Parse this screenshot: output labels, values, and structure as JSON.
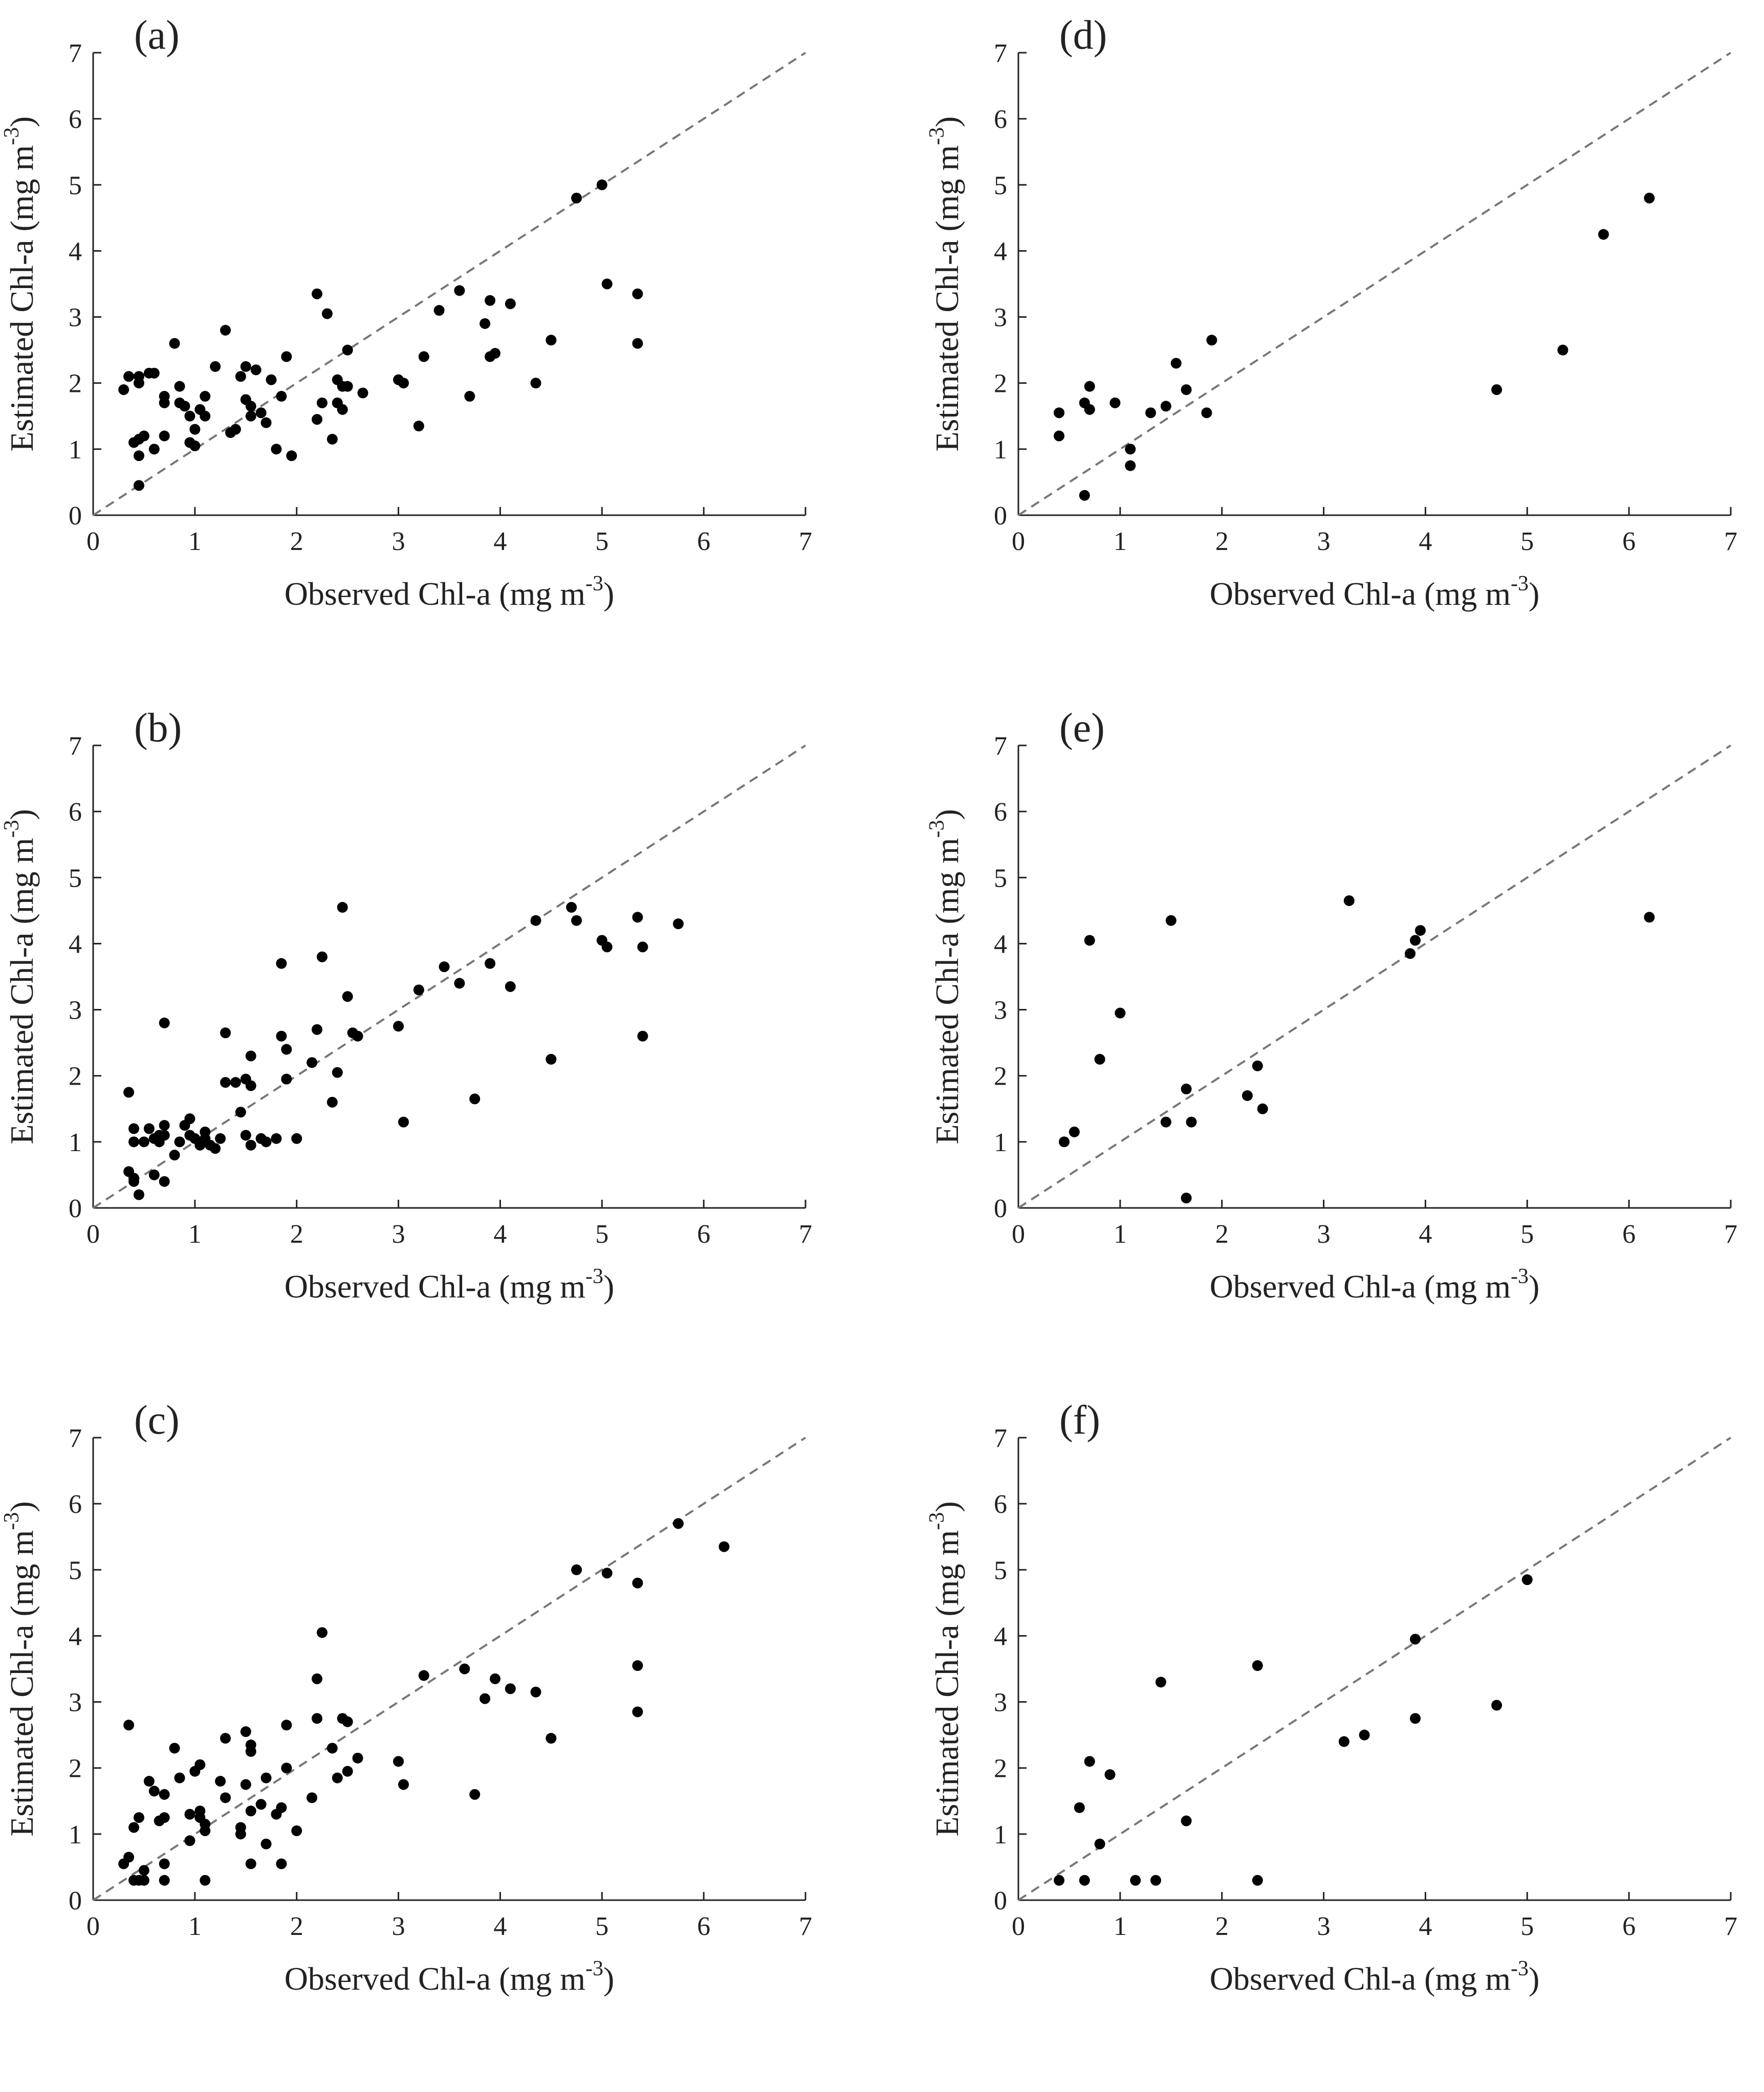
{
  "figure": {
    "x_axis_title": "Observed Chl-a (mg m",
    "y_axis_title": "Estimated Chl-a (mg m",
    "unit_exponent": "-3",
    "close_paren": ")",
    "ticks": [
      "0",
      "1",
      "2",
      "3",
      "4",
      "5",
      "6",
      "7"
    ]
  },
  "colors": {
    "point": "#000000",
    "reference_line": "#777777",
    "axis": "#222222"
  },
  "chart_data": [
    {
      "type": "scatter",
      "panel": "(a)",
      "xlabel": "Observed Chl-a (mg m-3)",
      "ylabel": "Estimated Chl-a (mg m-3)",
      "xlim": [
        0,
        7
      ],
      "ylim": [
        0,
        7
      ],
      "reference_line": "1:1 dashed",
      "points": [
        [
          0.3,
          1.9
        ],
        [
          0.35,
          2.1
        ],
        [
          0.45,
          2.1
        ],
        [
          0.4,
          1.1
        ],
        [
          0.45,
          1.15
        ],
        [
          0.5,
          1.2
        ],
        [
          0.45,
          2.0
        ],
        [
          0.55,
          2.15
        ],
        [
          0.6,
          2.15
        ],
        [
          0.45,
          0.45
        ],
        [
          0.45,
          0.9
        ],
        [
          0.6,
          1.0
        ],
        [
          0.7,
          1.8
        ],
        [
          0.7,
          1.7
        ],
        [
          0.7,
          1.2
        ],
        [
          0.8,
          2.6
        ],
        [
          0.85,
          1.95
        ],
        [
          0.85,
          1.7
        ],
        [
          0.9,
          1.65
        ],
        [
          0.95,
          1.5
        ],
        [
          0.95,
          1.1
        ],
        [
          1.0,
          1.05
        ],
        [
          1.0,
          1.3
        ],
        [
          1.05,
          1.6
        ],
        [
          1.1,
          1.5
        ],
        [
          1.1,
          1.8
        ],
        [
          1.2,
          2.25
        ],
        [
          1.3,
          2.8
        ],
        [
          1.35,
          1.25
        ],
        [
          1.4,
          1.3
        ],
        [
          1.45,
          2.1
        ],
        [
          1.5,
          2.25
        ],
        [
          1.5,
          1.75
        ],
        [
          1.55,
          1.65
        ],
        [
          1.55,
          1.5
        ],
        [
          1.6,
          2.2
        ],
        [
          1.65,
          1.55
        ],
        [
          1.7,
          1.4
        ],
        [
          1.75,
          2.05
        ],
        [
          1.8,
          1.0
        ],
        [
          1.85,
          1.8
        ],
        [
          1.9,
          2.4
        ],
        [
          1.95,
          0.9
        ],
        [
          2.2,
          1.45
        ],
        [
          2.25,
          1.7
        ],
        [
          2.2,
          3.35
        ],
        [
          2.3,
          3.05
        ],
        [
          2.35,
          1.15
        ],
        [
          2.4,
          2.05
        ],
        [
          2.4,
          1.7
        ],
        [
          2.45,
          1.6
        ],
        [
          2.45,
          1.95
        ],
        [
          2.5,
          2.5
        ],
        [
          2.5,
          1.95
        ],
        [
          2.65,
          1.85
        ],
        [
          3.0,
          2.05
        ],
        [
          3.05,
          2.0
        ],
        [
          3.2,
          1.35
        ],
        [
          3.25,
          2.4
        ],
        [
          3.4,
          3.1
        ],
        [
          3.6,
          3.4
        ],
        [
          3.7,
          1.8
        ],
        [
          3.85,
          2.9
        ],
        [
          3.9,
          3.25
        ],
        [
          3.9,
          2.4
        ],
        [
          3.95,
          2.45
        ],
        [
          4.1,
          3.2
        ],
        [
          4.35,
          2.0
        ],
        [
          4.5,
          2.65
        ],
        [
          4.75,
          4.8
        ],
        [
          5.0,
          5.0
        ],
        [
          5.05,
          3.5
        ],
        [
          5.35,
          3.35
        ],
        [
          5.35,
          2.6
        ]
      ]
    },
    {
      "type": "scatter",
      "panel": "(b)",
      "xlabel": "Observed Chl-a (mg m-3)",
      "ylabel": "Estimated Chl-a (mg m-3)",
      "xlim": [
        0,
        7
      ],
      "ylim": [
        0,
        7
      ],
      "reference_line": "1:1 dashed",
      "points": [
        [
          0.35,
          0.55
        ],
        [
          0.4,
          0.45
        ],
        [
          0.4,
          0.4
        ],
        [
          0.45,
          0.2
        ],
        [
          0.35,
          1.75
        ],
        [
          0.4,
          1.2
        ],
        [
          0.4,
          1.0
        ],
        [
          0.5,
          1.0
        ],
        [
          0.55,
          1.2
        ],
        [
          0.6,
          1.05
        ],
        [
          0.6,
          0.5
        ],
        [
          0.65,
          1.0
        ],
        [
          0.65,
          1.1
        ],
        [
          0.7,
          1.25
        ],
        [
          0.7,
          1.1
        ],
        [
          0.7,
          0.4
        ],
        [
          0.7,
          2.8
        ],
        [
          0.8,
          0.8
        ],
        [
          0.85,
          1.0
        ],
        [
          0.9,
          1.25
        ],
        [
          0.95,
          1.35
        ],
        [
          0.95,
          1.1
        ],
        [
          1.0,
          1.05
        ],
        [
          1.05,
          0.95
        ],
        [
          1.1,
          1.05
        ],
        [
          1.1,
          1.15
        ],
        [
          1.15,
          0.95
        ],
        [
          1.2,
          0.9
        ],
        [
          1.25,
          1.05
        ],
        [
          1.3,
          2.65
        ],
        [
          1.3,
          1.9
        ],
        [
          1.4,
          1.9
        ],
        [
          1.45,
          1.45
        ],
        [
          1.5,
          1.1
        ],
        [
          1.5,
          1.95
        ],
        [
          1.55,
          0.95
        ],
        [
          1.55,
          1.85
        ],
        [
          1.55,
          2.3
        ],
        [
          1.65,
          1.05
        ],
        [
          1.7,
          1.0
        ],
        [
          1.8,
          1.05
        ],
        [
          1.85,
          2.6
        ],
        [
          1.85,
          3.7
        ],
        [
          1.9,
          2.4
        ],
        [
          1.9,
          1.95
        ],
        [
          2.0,
          1.05
        ],
        [
          2.15,
          2.2
        ],
        [
          2.2,
          2.7
        ],
        [
          2.25,
          3.8
        ],
        [
          2.35,
          1.6
        ],
        [
          2.4,
          2.05
        ],
        [
          2.45,
          4.55
        ],
        [
          2.5,
          3.2
        ],
        [
          2.55,
          2.65
        ],
        [
          2.6,
          2.6
        ],
        [
          3.0,
          2.75
        ],
        [
          3.05,
          1.3
        ],
        [
          3.2,
          3.3
        ],
        [
          3.45,
          3.65
        ],
        [
          3.6,
          3.4
        ],
        [
          3.75,
          1.65
        ],
        [
          3.9,
          3.7
        ],
        [
          4.1,
          3.35
        ],
        [
          4.35,
          4.35
        ],
        [
          4.5,
          2.25
        ],
        [
          4.7,
          4.55
        ],
        [
          4.75,
          4.35
        ],
        [
          5.0,
          4.05
        ],
        [
          5.05,
          3.95
        ],
        [
          5.35,
          4.4
        ],
        [
          5.4,
          3.95
        ],
        [
          5.4,
          2.6
        ],
        [
          5.75,
          4.3
        ]
      ]
    },
    {
      "type": "scatter",
      "panel": "(c)",
      "xlabel": "Observed Chl-a (mg m-3)",
      "ylabel": "Estimated Chl-a (mg m-3)",
      "xlim": [
        0,
        7
      ],
      "ylim": [
        0,
        7
      ],
      "reference_line": "1:1 dashed",
      "points": [
        [
          0.3,
          0.55
        ],
        [
          0.35,
          2.65
        ],
        [
          0.35,
          0.65
        ],
        [
          0.4,
          1.1
        ],
        [
          0.4,
          0.3
        ],
        [
          0.45,
          1.25
        ],
        [
          0.45,
          0.3
        ],
        [
          0.5,
          0.45
        ],
        [
          0.5,
          0.3
        ],
        [
          0.55,
          1.8
        ],
        [
          0.6,
          1.65
        ],
        [
          0.65,
          1.2
        ],
        [
          0.7,
          1.6
        ],
        [
          0.7,
          1.25
        ],
        [
          0.7,
          0.55
        ],
        [
          0.7,
          0.3
        ],
        [
          0.8,
          2.3
        ],
        [
          0.85,
          1.85
        ],
        [
          0.95,
          1.3
        ],
        [
          0.95,
          0.9
        ],
        [
          1.0,
          1.95
        ],
        [
          1.05,
          2.05
        ],
        [
          1.05,
          1.25
        ],
        [
          1.05,
          1.35
        ],
        [
          1.1,
          1.05
        ],
        [
          1.1,
          1.15
        ],
        [
          1.1,
          0.3
        ],
        [
          1.25,
          1.8
        ],
        [
          1.3,
          2.45
        ],
        [
          1.3,
          1.55
        ],
        [
          1.45,
          1.1
        ],
        [
          1.45,
          1.0
        ],
        [
          1.5,
          1.75
        ],
        [
          1.5,
          2.55
        ],
        [
          1.55,
          2.35
        ],
        [
          1.55,
          2.25
        ],
        [
          1.55,
          1.35
        ],
        [
          1.55,
          0.55
        ],
        [
          1.65,
          1.45
        ],
        [
          1.7,
          1.85
        ],
        [
          1.7,
          0.85
        ],
        [
          1.8,
          1.3
        ],
        [
          1.85,
          1.4
        ],
        [
          1.85,
          0.55
        ],
        [
          1.9,
          2.0
        ],
        [
          1.9,
          2.65
        ],
        [
          2.0,
          1.05
        ],
        [
          2.15,
          1.55
        ],
        [
          2.2,
          2.75
        ],
        [
          2.2,
          3.35
        ],
        [
          2.25,
          4.05
        ],
        [
          2.35,
          2.3
        ],
        [
          2.4,
          1.85
        ],
        [
          2.45,
          2.75
        ],
        [
          2.5,
          1.95
        ],
        [
          2.5,
          2.7
        ],
        [
          2.6,
          2.15
        ],
        [
          3.0,
          2.1
        ],
        [
          3.05,
          1.75
        ],
        [
          3.25,
          3.4
        ],
        [
          3.65,
          3.5
        ],
        [
          3.75,
          1.6
        ],
        [
          3.85,
          3.05
        ],
        [
          3.95,
          3.35
        ],
        [
          4.1,
          3.2
        ],
        [
          4.35,
          3.15
        ],
        [
          4.5,
          2.45
        ],
        [
          4.75,
          5.0
        ],
        [
          5.05,
          4.95
        ],
        [
          5.35,
          4.8
        ],
        [
          5.35,
          3.55
        ],
        [
          5.35,
          2.85
        ],
        [
          5.75,
          5.7
        ],
        [
          6.2,
          5.35
        ]
      ]
    },
    {
      "type": "scatter",
      "panel": "(d)",
      "xlabel": "Observed Chl-a (mg m-3)",
      "ylabel": "Estimated Chl-a (mg m-3)",
      "xlim": [
        0,
        7
      ],
      "ylim": [
        0,
        7
      ],
      "reference_line": "1:1 dashed",
      "points": [
        [
          0.4,
          1.2
        ],
        [
          0.4,
          1.55
        ],
        [
          0.65,
          1.7
        ],
        [
          0.65,
          0.3
        ],
        [
          0.7,
          1.95
        ],
        [
          0.7,
          1.6
        ],
        [
          0.95,
          1.7
        ],
        [
          1.1,
          0.75
        ],
        [
          1.1,
          1.0
        ],
        [
          1.3,
          1.55
        ],
        [
          1.45,
          1.65
        ],
        [
          1.55,
          2.3
        ],
        [
          1.65,
          1.9
        ],
        [
          1.85,
          1.55
        ],
        [
          1.9,
          2.65
        ],
        [
          4.7,
          1.9
        ],
        [
          5.35,
          2.5
        ],
        [
          5.75,
          4.25
        ],
        [
          6.2,
          4.8
        ]
      ]
    },
    {
      "type": "scatter",
      "panel": "(e)",
      "xlabel": "Observed Chl-a (mg m-3)",
      "ylabel": "Estimated Chl-a (mg m-3)",
      "xlim": [
        0,
        7
      ],
      "ylim": [
        0,
        7
      ],
      "reference_line": "1:1 dashed",
      "points": [
        [
          0.45,
          1.0
        ],
        [
          0.55,
          1.15
        ],
        [
          0.7,
          4.05
        ],
        [
          0.8,
          2.25
        ],
        [
          1.0,
          2.95
        ],
        [
          1.45,
          1.3
        ],
        [
          1.5,
          4.35
        ],
        [
          1.65,
          1.8
        ],
        [
          1.65,
          0.15
        ],
        [
          1.7,
          1.3
        ],
        [
          2.25,
          1.7
        ],
        [
          2.35,
          2.15
        ],
        [
          2.4,
          1.5
        ],
        [
          3.25,
          4.65
        ],
        [
          3.85,
          3.85
        ],
        [
          3.9,
          4.05
        ],
        [
          3.95,
          4.2
        ],
        [
          6.2,
          4.4
        ]
      ]
    },
    {
      "type": "scatter",
      "panel": "(f)",
      "xlabel": "Observed Chl-a (mg m-3)",
      "ylabel": "Estimated Chl-a (mg m-3)",
      "xlim": [
        0,
        7
      ],
      "ylim": [
        0,
        7
      ],
      "reference_line": "1:1 dashed",
      "points": [
        [
          0.4,
          0.3
        ],
        [
          0.6,
          1.4
        ],
        [
          0.65,
          0.3
        ],
        [
          0.7,
          2.1
        ],
        [
          0.8,
          0.85
        ],
        [
          0.9,
          1.9
        ],
        [
          1.15,
          0.3
        ],
        [
          1.35,
          0.3
        ],
        [
          1.4,
          3.3
        ],
        [
          1.65,
          1.2
        ],
        [
          2.35,
          3.55
        ],
        [
          2.35,
          0.3
        ],
        [
          3.2,
          2.4
        ],
        [
          3.4,
          2.5
        ],
        [
          3.9,
          3.95
        ],
        [
          3.9,
          2.75
        ],
        [
          4.7,
          2.95
        ],
        [
          5.0,
          4.85
        ]
      ]
    }
  ]
}
